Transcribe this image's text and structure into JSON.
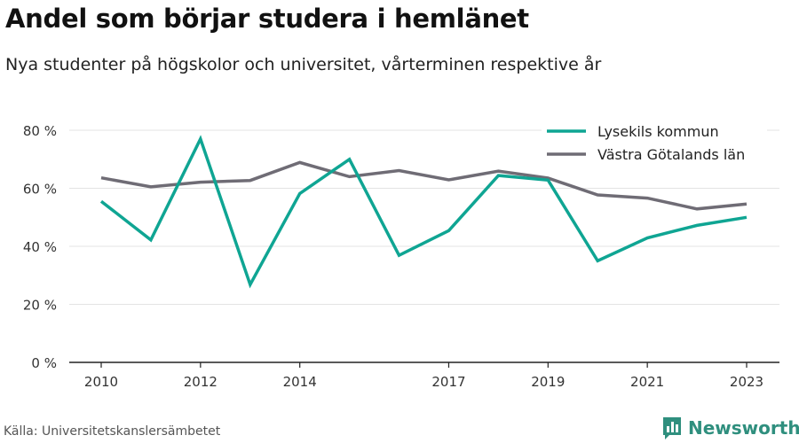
{
  "title": "Andel som börjar studera i hemlänet",
  "subtitle": "Nya studenter på högskolor och universitet, vårterminen respektive år",
  "source": "Källa: Universitetskanslersämbetet",
  "brand": {
    "name": "Newsworthy",
    "icon": "bar-chart-logo-icon",
    "color": "#2f8f7e"
  },
  "chart_data": {
    "type": "line",
    "x": [
      2010,
      2011,
      2012,
      2013,
      2014,
      2015,
      2016,
      2017,
      2018,
      2019,
      2020,
      2021,
      2022,
      2023
    ],
    "x_tick_labels": [
      "2010",
      "2012",
      "2014",
      "2017",
      "2019",
      "2021",
      "2023"
    ],
    "y_tick_labels": [
      "0 %",
      "20 %",
      "40 %",
      "60 %",
      "80 %"
    ],
    "ylim": [
      0,
      80
    ],
    "y_ticks": [
      0,
      20,
      40,
      60,
      80
    ],
    "grid": true,
    "legend_position": "top-right",
    "series": [
      {
        "name": "Lysekils kommun",
        "color": "#0fa593",
        "values": [
          55.5,
          42.2,
          77.0,
          26.8,
          58.2,
          70.0,
          36.9,
          45.4,
          64.4,
          62.8,
          35.0,
          42.9,
          47.2,
          50.0
        ]
      },
      {
        "name": "Västra Götalands län",
        "color": "#6f6c75",
        "values": [
          63.6,
          60.5,
          62.1,
          62.7,
          68.9,
          64.0,
          66.1,
          62.9,
          65.9,
          63.5,
          57.7,
          56.6,
          52.9,
          54.6
        ]
      }
    ]
  }
}
